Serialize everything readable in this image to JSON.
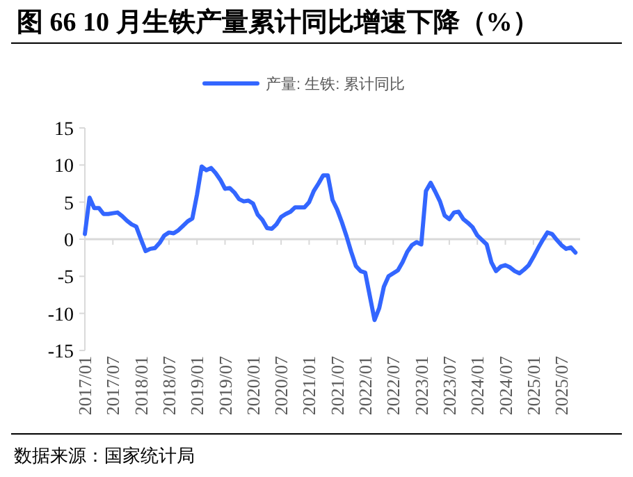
{
  "chart_data": {
    "type": "line",
    "title": "图 66 10 月生铁产量累计同比增速下降（%）",
    "annotations": [
      "数据来源：国家统计局"
    ],
    "legend": "top",
    "grid": false,
    "marker": "none",
    "line_style": "solid",
    "x": [
      "2017-01",
      "2017-02",
      "2017-03",
      "2017-04",
      "2017-05",
      "2017-06",
      "2017-07",
      "2017-08",
      "2017-09",
      "2017-10",
      "2017-11",
      "2017-12",
      "2018-01",
      "2018-02",
      "2018-03",
      "2018-04",
      "2018-05",
      "2018-06",
      "2018-07",
      "2018-08",
      "2018-09",
      "2018-10",
      "2018-11",
      "2018-12",
      "2019-01",
      "2019-02",
      "2019-03",
      "2019-04",
      "2019-05",
      "2019-06",
      "2019-07",
      "2019-08",
      "2019-09",
      "2019-10",
      "2019-11",
      "2019-12",
      "2020-01",
      "2020-02",
      "2020-03",
      "2020-04",
      "2020-05",
      "2020-06",
      "2020-07",
      "2020-08",
      "2020-09",
      "2020-10",
      "2020-11",
      "2020-12",
      "2021-01",
      "2021-02",
      "2021-03",
      "2021-04",
      "2021-05",
      "2021-06",
      "2021-07",
      "2021-08",
      "2021-09",
      "2021-10",
      "2021-11",
      "2021-12",
      "2022-01",
      "2022-02",
      "2022-03",
      "2022-04",
      "2022-05",
      "2022-06",
      "2022-07",
      "2022-08",
      "2022-09",
      "2022-10",
      "2022-11",
      "2022-12",
      "2023-01",
      "2023-02",
      "2023-03",
      "2023-04",
      "2023-05",
      "2023-06",
      "2023-07",
      "2023-08",
      "2023-09",
      "2023-10",
      "2023-11",
      "2023-12",
      "2024-01",
      "2024-02",
      "2024-03",
      "2024-04",
      "2024-05",
      "2024-06",
      "2024-07",
      "2024-08",
      "2024-09",
      "2024-10",
      "2024-11",
      "2024-12",
      "2025-01",
      "2025-02",
      "2025-03",
      "2025-04",
      "2025-05",
      "2025-06",
      "2025-07",
      "2025-08",
      "2025-09",
      "2025-10"
    ],
    "series": [
      {
        "name": "产量: 生铁: 累计同比",
        "color": "#3366ff",
        "values": [
          0.7,
          5.6,
          4.2,
          4.2,
          3.4,
          3.4,
          3.5,
          3.6,
          3.1,
          2.5,
          2.0,
          1.7,
          0.0,
          -1.6,
          -1.3,
          -1.2,
          -0.5,
          0.5,
          0.9,
          0.8,
          1.2,
          1.8,
          2.4,
          2.8,
          6.0,
          9.8,
          9.3,
          9.6,
          8.9,
          8.0,
          6.8,
          6.9,
          6.3,
          5.4,
          5.1,
          5.2,
          4.8,
          3.3,
          2.6,
          1.5,
          1.4,
          2.0,
          3.0,
          3.4,
          3.7,
          4.3,
          4.3,
          4.3,
          5.0,
          6.5,
          7.5,
          8.6,
          8.6,
          5.3,
          4.0,
          2.3,
          0.4,
          -1.7,
          -3.6,
          -4.3,
          -4.5,
          -7.7,
          -10.9,
          -9.3,
          -6.4,
          -5.0,
          -4.6,
          -4.2,
          -3.1,
          -1.7,
          -0.8,
          -0.4,
          -0.7,
          6.5,
          7.6,
          6.4,
          5.1,
          3.2,
          2.7,
          3.6,
          3.7,
          2.7,
          2.2,
          1.6,
          0.5,
          -0.1,
          -0.7,
          -3.1,
          -4.3,
          -3.7,
          -3.5,
          -3.8,
          -4.3,
          -4.6,
          -4.1,
          -3.5,
          -2.4,
          -1.2,
          -0.1,
          0.9,
          0.7,
          -0.1,
          -0.8,
          -1.3,
          -1.1,
          -1.8
        ]
      }
    ],
    "xlim": [
      "2017-01",
      "2025-11"
    ],
    "xticks": [
      {
        "value": "2017-01",
        "label": "2017/01"
      },
      {
        "value": "2017-07",
        "label": "2017/07"
      },
      {
        "value": "2018-01",
        "label": "2018/01"
      },
      {
        "value": "2018-07",
        "label": "2018/07"
      },
      {
        "value": "2019-01",
        "label": "2019/01"
      },
      {
        "value": "2019-07",
        "label": "2019/07"
      },
      {
        "value": "2020-01",
        "label": "2020/01"
      },
      {
        "value": "2020-07",
        "label": "2020/07"
      },
      {
        "value": "2021-01",
        "label": "2021/01"
      },
      {
        "value": "2021-07",
        "label": "2021/07"
      },
      {
        "value": "2022-01",
        "label": "2022/01"
      },
      {
        "value": "2022-07",
        "label": "2022/07"
      },
      {
        "value": "2023-01",
        "label": "2023/01"
      },
      {
        "value": "2023-07",
        "label": "2023/07"
      },
      {
        "value": "2024-01",
        "label": "2024/01"
      },
      {
        "value": "2024-07",
        "label": "2024/07"
      },
      {
        "value": "2025-01",
        "label": "2025/01"
      },
      {
        "value": "2025-07",
        "label": "2025/07"
      }
    ],
    "ref_lines": [
      {
        "axis": "y",
        "value": 0,
        "color": "#d9d9d9"
      }
    ],
    "ylim": [
      -15,
      15
    ],
    "yticks": [
      -15,
      -10,
      -5,
      0,
      5,
      10,
      15
    ]
  }
}
